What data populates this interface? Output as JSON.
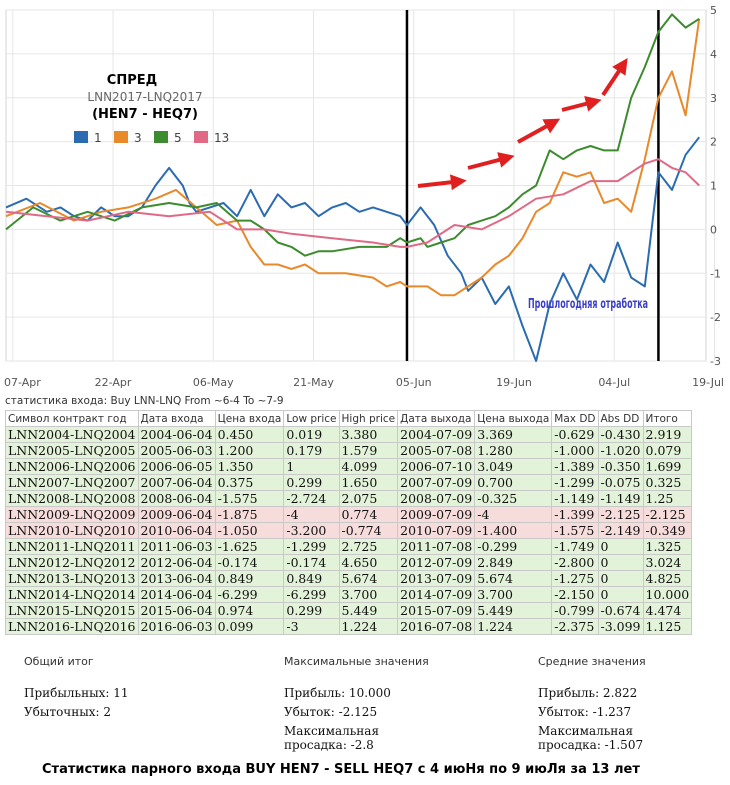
{
  "chart_data": {
    "type": "line",
    "title": "СПРЕД",
    "subtitle": "LNN2017-LNQ2017",
    "subtitle2": "(HEN7 - HEQ7)",
    "x_labels": [
      "07-Apr",
      "22-Apr",
      "06-May",
      "21-May",
      "05-Jun",
      "19-Jun",
      "04-Jul",
      "19-Jul"
    ],
    "ylim": [
      -3,
      5
    ],
    "yticks": [
      "5",
      "4",
      "3",
      "2",
      "1",
      "0",
      "-1",
      "-2",
      "-3"
    ],
    "legend_placement": "left",
    "annotation": "Прошлогодняя отработка",
    "vertical_markers_day": [
      59,
      96
    ],
    "series": [
      {
        "name": "1",
        "color": "#2b6cb0",
        "x": [
          0,
          3,
          6,
          8,
          10,
          12,
          14,
          16,
          18,
          20,
          22,
          24,
          26,
          27,
          28,
          30,
          32,
          34,
          36,
          38,
          40,
          42,
          44,
          46,
          48,
          50,
          52,
          54,
          56,
          58,
          59,
          61,
          63,
          65,
          67,
          68,
          70,
          72,
          74,
          76,
          78,
          80,
          82,
          84,
          86,
          88,
          90,
          92,
          94,
          96,
          98,
          100,
          102
        ],
        "y": [
          0.5,
          0.7,
          0.4,
          0.5,
          0.3,
          0.2,
          0.5,
          0.3,
          0.3,
          0.5,
          1.0,
          1.4,
          1.0,
          0.6,
          0.4,
          0.5,
          0.6,
          0.3,
          0.9,
          0.3,
          0.8,
          0.5,
          0.6,
          0.3,
          0.5,
          0.6,
          0.4,
          0.5,
          0.4,
          0.3,
          0.1,
          0.5,
          0.1,
          -0.6,
          -1.0,
          -1.4,
          -1.1,
          -1.7,
          -1.3,
          -2.2,
          -3.0,
          -1.7,
          -1.0,
          -1.6,
          -0.8,
          -1.2,
          -0.3,
          -1.1,
          -1.3,
          1.3,
          0.9,
          1.7,
          2.1
        ]
      },
      {
        "name": "3",
        "color": "#e8892a",
        "x": [
          0,
          5,
          10,
          14,
          18,
          22,
          25,
          28,
          31,
          34,
          36,
          38,
          40,
          42,
          44,
          46,
          50,
          54,
          56,
          58,
          59,
          62,
          64,
          66,
          68,
          70,
          72,
          74,
          76,
          78,
          80,
          82,
          84,
          86,
          88,
          90,
          92,
          94,
          96,
          98,
          100,
          102
        ],
        "y": [
          0.3,
          0.6,
          0.2,
          0.4,
          0.5,
          0.7,
          0.9,
          0.5,
          0.1,
          0.2,
          -0.4,
          -0.8,
          -0.8,
          -0.9,
          -0.8,
          -1.0,
          -1.0,
          -1.1,
          -1.3,
          -1.2,
          -1.3,
          -1.3,
          -1.5,
          -1.5,
          -1.3,
          -1.1,
          -0.8,
          -0.6,
          -0.2,
          0.4,
          0.6,
          1.3,
          1.2,
          1.3,
          0.6,
          0.7,
          0.4,
          1.6,
          3.0,
          3.6,
          2.6,
          4.8
        ]
      },
      {
        "name": "5",
        "color": "#3d8b2f",
        "x": [
          0,
          4,
          8,
          12,
          16,
          20,
          24,
          28,
          31,
          34,
          36,
          38,
          40,
          42,
          44,
          46,
          48,
          52,
          56,
          58,
          59,
          61,
          62,
          64,
          66,
          68,
          70,
          72,
          74,
          76,
          78,
          80,
          82,
          84,
          86,
          88,
          90,
          92,
          94,
          96,
          98,
          100,
          102
        ],
        "y": [
          0.0,
          0.5,
          0.2,
          0.4,
          0.2,
          0.5,
          0.6,
          0.5,
          0.6,
          0.2,
          0.2,
          0.0,
          -0.3,
          -0.4,
          -0.6,
          -0.5,
          -0.5,
          -0.4,
          -0.4,
          -0.2,
          -0.3,
          -0.2,
          -0.4,
          -0.3,
          -0.2,
          0.1,
          0.2,
          0.3,
          0.5,
          0.8,
          1.0,
          1.8,
          1.6,
          1.8,
          1.9,
          1.8,
          1.8,
          3.0,
          3.7,
          4.5,
          4.9,
          4.6,
          4.8
        ]
      },
      {
        "name": "13",
        "color": "#e06a86",
        "x": [
          0,
          6,
          12,
          18,
          24,
          30,
          34,
          38,
          42,
          48,
          54,
          58,
          59,
          62,
          66,
          70,
          74,
          78,
          82,
          86,
          90,
          94,
          96,
          98,
          100,
          102
        ],
        "y": [
          0.4,
          0.3,
          0.2,
          0.4,
          0.3,
          0.4,
          0.0,
          0.0,
          -0.1,
          -0.2,
          -0.3,
          -0.4,
          -0.4,
          -0.3,
          0.1,
          0.0,
          0.3,
          0.7,
          0.8,
          1.1,
          1.1,
          1.5,
          1.6,
          1.4,
          1.3,
          1.0
        ]
      }
    ]
  },
  "arrows_color": "#e02020",
  "stats_caption": "статистика входа: Buy LNN-LNQ From ~6-4 To ~7-9",
  "table": {
    "headers": [
      "Символ контракт год",
      "Дата входа",
      "Цена входа",
      "Low price",
      "High price",
      "Дата выхода",
      "Цена выхода",
      "Max DD",
      "Abs DD",
      "Итого"
    ],
    "rows": [
      {
        "status": "pos",
        "cells": [
          "LNN2004-LNQ2004",
          "2004-06-04",
          "0.450",
          "0.019",
          "3.380",
          "2004-07-09",
          "3.369",
          "-0.629",
          "-0.430",
          "2.919"
        ]
      },
      {
        "status": "pos",
        "cells": [
          "LNN2005-LNQ2005",
          "2005-06-03",
          "1.200",
          "0.179",
          "1.579",
          "2005-07-08",
          "1.280",
          "-1.000",
          "-1.020",
          "0.079"
        ]
      },
      {
        "status": "pos",
        "cells": [
          "LNN2006-LNQ2006",
          "2006-06-05",
          "1.350",
          "1",
          "4.099",
          "2006-07-10",
          "3.049",
          "-1.389",
          "-0.350",
          "1.699"
        ]
      },
      {
        "status": "pos",
        "cells": [
          "LNN2007-LNQ2007",
          "2007-06-04",
          "0.375",
          "0.299",
          "1.650",
          "2007-07-09",
          "0.700",
          "-1.299",
          "-0.075",
          "0.325"
        ]
      },
      {
        "status": "pos",
        "cells": [
          "LNN2008-LNQ2008",
          "2008-06-04",
          "-1.575",
          "-2.724",
          "2.075",
          "2008-07-09",
          "-0.325",
          "-1.149",
          "-1.149",
          "1.25"
        ]
      },
      {
        "status": "neg",
        "cells": [
          "LNN2009-LNQ2009",
          "2009-06-04",
          "-1.875",
          "-4",
          "0.774",
          "2009-07-09",
          "-4",
          "-1.399",
          "-2.125",
          "-2.125"
        ]
      },
      {
        "status": "neg",
        "cells": [
          "LNN2010-LNQ2010",
          "2010-06-04",
          "-1.050",
          "-3.200",
          "-0.774",
          "2010-07-09",
          "-1.400",
          "-1.575",
          "-2.149",
          "-0.349"
        ]
      },
      {
        "status": "pos",
        "cells": [
          "LNN2011-LNQ2011",
          "2011-06-03",
          "-1.625",
          "-1.299",
          "2.725",
          "2011-07-08",
          "-0.299",
          "-1.749",
          "0",
          "1.325"
        ]
      },
      {
        "status": "pos",
        "cells": [
          "LNN2012-LNQ2012",
          "2012-06-04",
          "-0.174",
          "-0.174",
          "4.650",
          "2012-07-09",
          "2.849",
          "-2.800",
          "0",
          "3.024"
        ]
      },
      {
        "status": "pos",
        "cells": [
          "LNN2013-LNQ2013",
          "2013-06-04",
          "0.849",
          "0.849",
          "5.674",
          "2013-07-09",
          "5.674",
          "-1.275",
          "0",
          "4.825"
        ]
      },
      {
        "status": "pos",
        "cells": [
          "LNN2014-LNQ2014",
          "2014-06-04",
          "-6.299",
          "-6.299",
          "3.700",
          "2014-07-09",
          "3.700",
          "-2.150",
          "0",
          "10.000"
        ]
      },
      {
        "status": "pos",
        "cells": [
          "LNN2015-LNQ2015",
          "2015-06-04",
          "0.974",
          "0.299",
          "5.449",
          "2015-07-09",
          "5.449",
          "-0.799",
          "-0.674",
          "4.474"
        ]
      },
      {
        "status": "pos",
        "cells": [
          "LNN2016-LNQ2016",
          "2016-06-03",
          "0.099",
          "-3",
          "1.224",
          "2016-07-08",
          "1.224",
          "-2.375",
          "-3.099",
          "1.125"
        ]
      }
    ]
  },
  "summary": {
    "total": {
      "header": "Общий итог",
      "profitable": "Прибыльных: 11",
      "losing": "Убыточных: 2"
    },
    "max": {
      "header": "Максимальные значения",
      "profit": "Прибыль: 10.000",
      "loss": "Убыток: -2.125",
      "drawdown_label": "Максимальная",
      "drawdown_value": "просадка: -2.8"
    },
    "avg": {
      "header": "Средние значения",
      "profit": "Прибыль: 2.822",
      "loss": "Убыток: -1.237",
      "drawdown_label": "Максимальная",
      "drawdown_value": "просадка: -1.507"
    }
  },
  "footer": "Статистика парного входа BUY HEN7  -  SELL HEQ7  с 4  июНя по 9 июЛя за 13 лет"
}
